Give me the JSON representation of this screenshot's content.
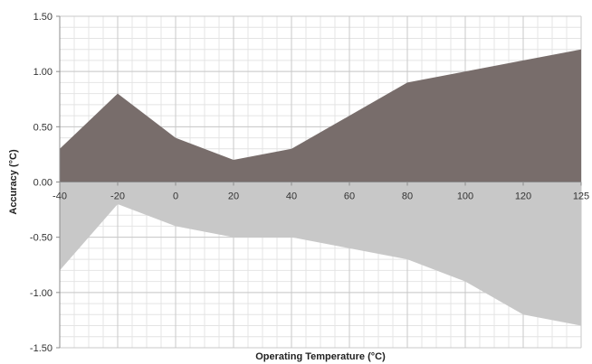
{
  "chart_data": {
    "type": "area",
    "title": "",
    "xlabel": "Operating Temperature (°C)",
    "ylabel": "Accuracy (°C)",
    "x": [
      -40,
      -20,
      0,
      20,
      40,
      60,
      80,
      100,
      120,
      125
    ],
    "x_tick_labels": [
      "-40",
      "-20",
      "0",
      "20",
      "40",
      "60",
      "80",
      "100",
      "120",
      "125"
    ],
    "y_tick_labels": [
      "1.50",
      "1.00",
      "0.50",
      "0.00",
      "-0.50",
      "-1.00",
      "-1.50"
    ],
    "y_ticks": [
      1.5,
      1.0,
      0.5,
      0.0,
      -0.5,
      -1.0,
      -1.5
    ],
    "ylim": [
      -1.5,
      1.5
    ],
    "grid": true,
    "series": [
      {
        "values": [
          0.3,
          0.8,
          0.4,
          0.2,
          0.3,
          0.6,
          0.9,
          1.0,
          1.1,
          1.2
        ],
        "color": "#786d6b"
      },
      {
        "values": [
          -0.8,
          -0.2,
          -0.4,
          -0.5,
          -0.5,
          -0.6,
          -0.7,
          -0.9,
          -1.2,
          -1.3
        ],
        "color": "#c8c8c8"
      }
    ]
  }
}
